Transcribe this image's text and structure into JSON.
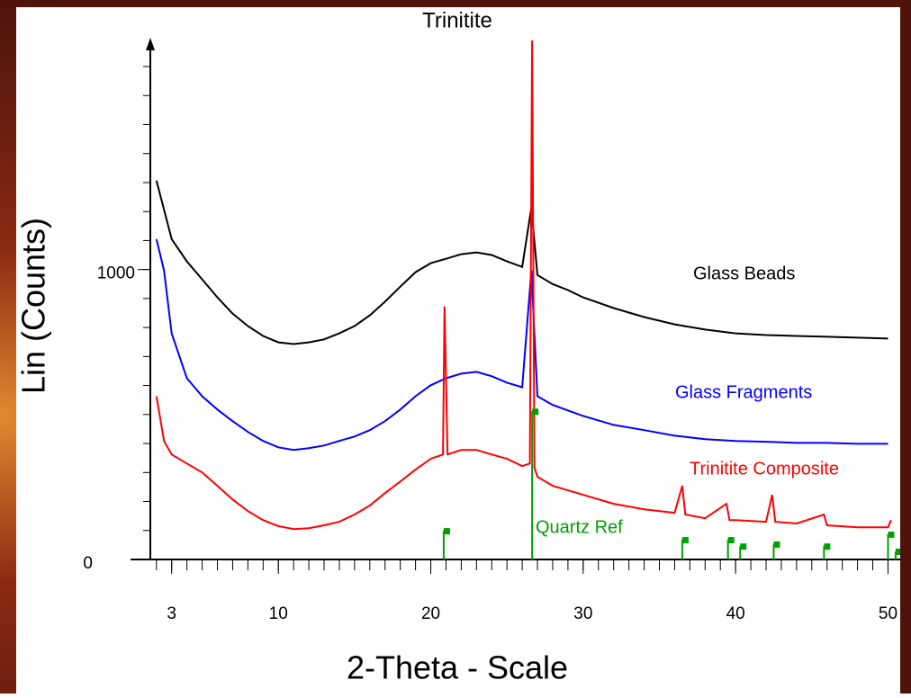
{
  "chart_data": {
    "type": "line",
    "title": "Trinitite",
    "x_label": "2-Theta - Scale",
    "y_label": "Lin (Counts)",
    "xlim": [
      1.6,
      50.8
    ],
    "ylim": [
      0,
      1790
    ],
    "xticks": [
      3,
      10,
      20,
      30,
      40,
      50
    ],
    "yticks": [
      0,
      1000
    ],
    "xminorticks": [
      2,
      3,
      4,
      5,
      6,
      7,
      8,
      9,
      10,
      11,
      12,
      13,
      14,
      15,
      16,
      17,
      18,
      19,
      20,
      21,
      22,
      23,
      24,
      25,
      26,
      27,
      28,
      29,
      30,
      31,
      32,
      33,
      34,
      35,
      36,
      37,
      38,
      39,
      40,
      41,
      42,
      43,
      44,
      45,
      46,
      47,
      48,
      49,
      50
    ],
    "yminorticks": [
      100,
      200,
      300,
      400,
      500,
      600,
      700,
      800,
      900,
      1000,
      1100,
      1200,
      1300,
      1400,
      1500,
      1600,
      1700
    ],
    "series": [
      {
        "name": "Glass Beads",
        "color": "#000000",
        "x": [
          2,
          3,
          4,
          5,
          6,
          7,
          8,
          9,
          10,
          11,
          12,
          13,
          14,
          15,
          16,
          17,
          18,
          19,
          20,
          21,
          22,
          23,
          24,
          25,
          26,
          26.6,
          27,
          28,
          29,
          30,
          32,
          34,
          36,
          38,
          40,
          42,
          44,
          46,
          48,
          50
        ],
        "values": [
          1307,
          1105,
          1028,
          966,
          904,
          848,
          805,
          771,
          749,
          743,
          749,
          759,
          780,
          805,
          842,
          889,
          941,
          991,
          1022,
          1037,
          1053,
          1059,
          1050,
          1028,
          1009,
          1214,
          981,
          950,
          929,
          904,
          867,
          836,
          811,
          793,
          780,
          774,
          771,
          768,
          765,
          762
        ]
      },
      {
        "name": "Glass Fragments",
        "color": "#0000ff",
        "x": [
          2,
          2.5,
          3,
          4,
          5,
          6,
          7,
          8,
          9,
          10,
          11,
          12,
          13,
          14,
          15,
          16,
          17,
          18,
          19,
          20,
          21,
          22,
          23,
          24,
          25,
          26,
          26.6,
          27,
          28,
          30,
          32,
          34,
          36,
          38,
          40,
          42,
          44,
          46,
          48,
          50
        ],
        "values": [
          1105,
          997,
          780,
          625,
          563,
          517,
          477,
          440,
          409,
          387,
          378,
          384,
          393,
          409,
          424,
          446,
          477,
          517,
          563,
          601,
          625,
          641,
          647,
          632,
          610,
          594,
          997,
          563,
          533,
          495,
          464,
          446,
          427,
          415,
          409,
          406,
          402,
          402,
          399,
          399
        ]
      },
      {
        "name": "Trinitite Composite",
        "color": "#ff0000",
        "x": [
          2,
          2.5,
          3,
          4,
          5,
          6,
          7,
          8,
          9,
          10,
          11,
          12,
          13,
          14,
          15,
          16,
          17,
          18,
          19,
          20,
          20.8,
          20.9,
          21.1,
          22,
          23,
          24,
          25,
          26,
          26.5,
          26.65,
          26.8,
          27,
          28,
          30,
          32,
          34,
          36,
          36.5,
          36.7,
          38,
          39.4,
          39.6,
          40,
          42,
          42.4,
          42.6,
          44,
          45.8,
          46,
          48,
          50,
          50.2
        ],
        "values": [
          563,
          409,
          362,
          331,
          300,
          254,
          207,
          167,
          136,
          115,
          105,
          108,
          118,
          130,
          155,
          186,
          229,
          269,
          310,
          347,
          362,
          873,
          362,
          378,
          378,
          362,
          347,
          322,
          331,
          1790,
          316,
          285,
          254,
          223,
          192,
          173,
          161,
          254,
          155,
          142,
          192,
          136,
          136,
          130,
          223,
          130,
          124,
          155,
          118,
          111,
          111,
          136
        ]
      },
      {
        "name": "Quartz Ref",
        "color": "#00a000",
        "style": "stick",
        "x": [
          20.85,
          26.65,
          36.5,
          39.5,
          40.3,
          42.5,
          45.8,
          50,
          50.5
        ],
        "values": [
          99,
          511,
          68,
          68,
          46,
          53,
          46,
          87,
          28
        ]
      }
    ]
  }
}
